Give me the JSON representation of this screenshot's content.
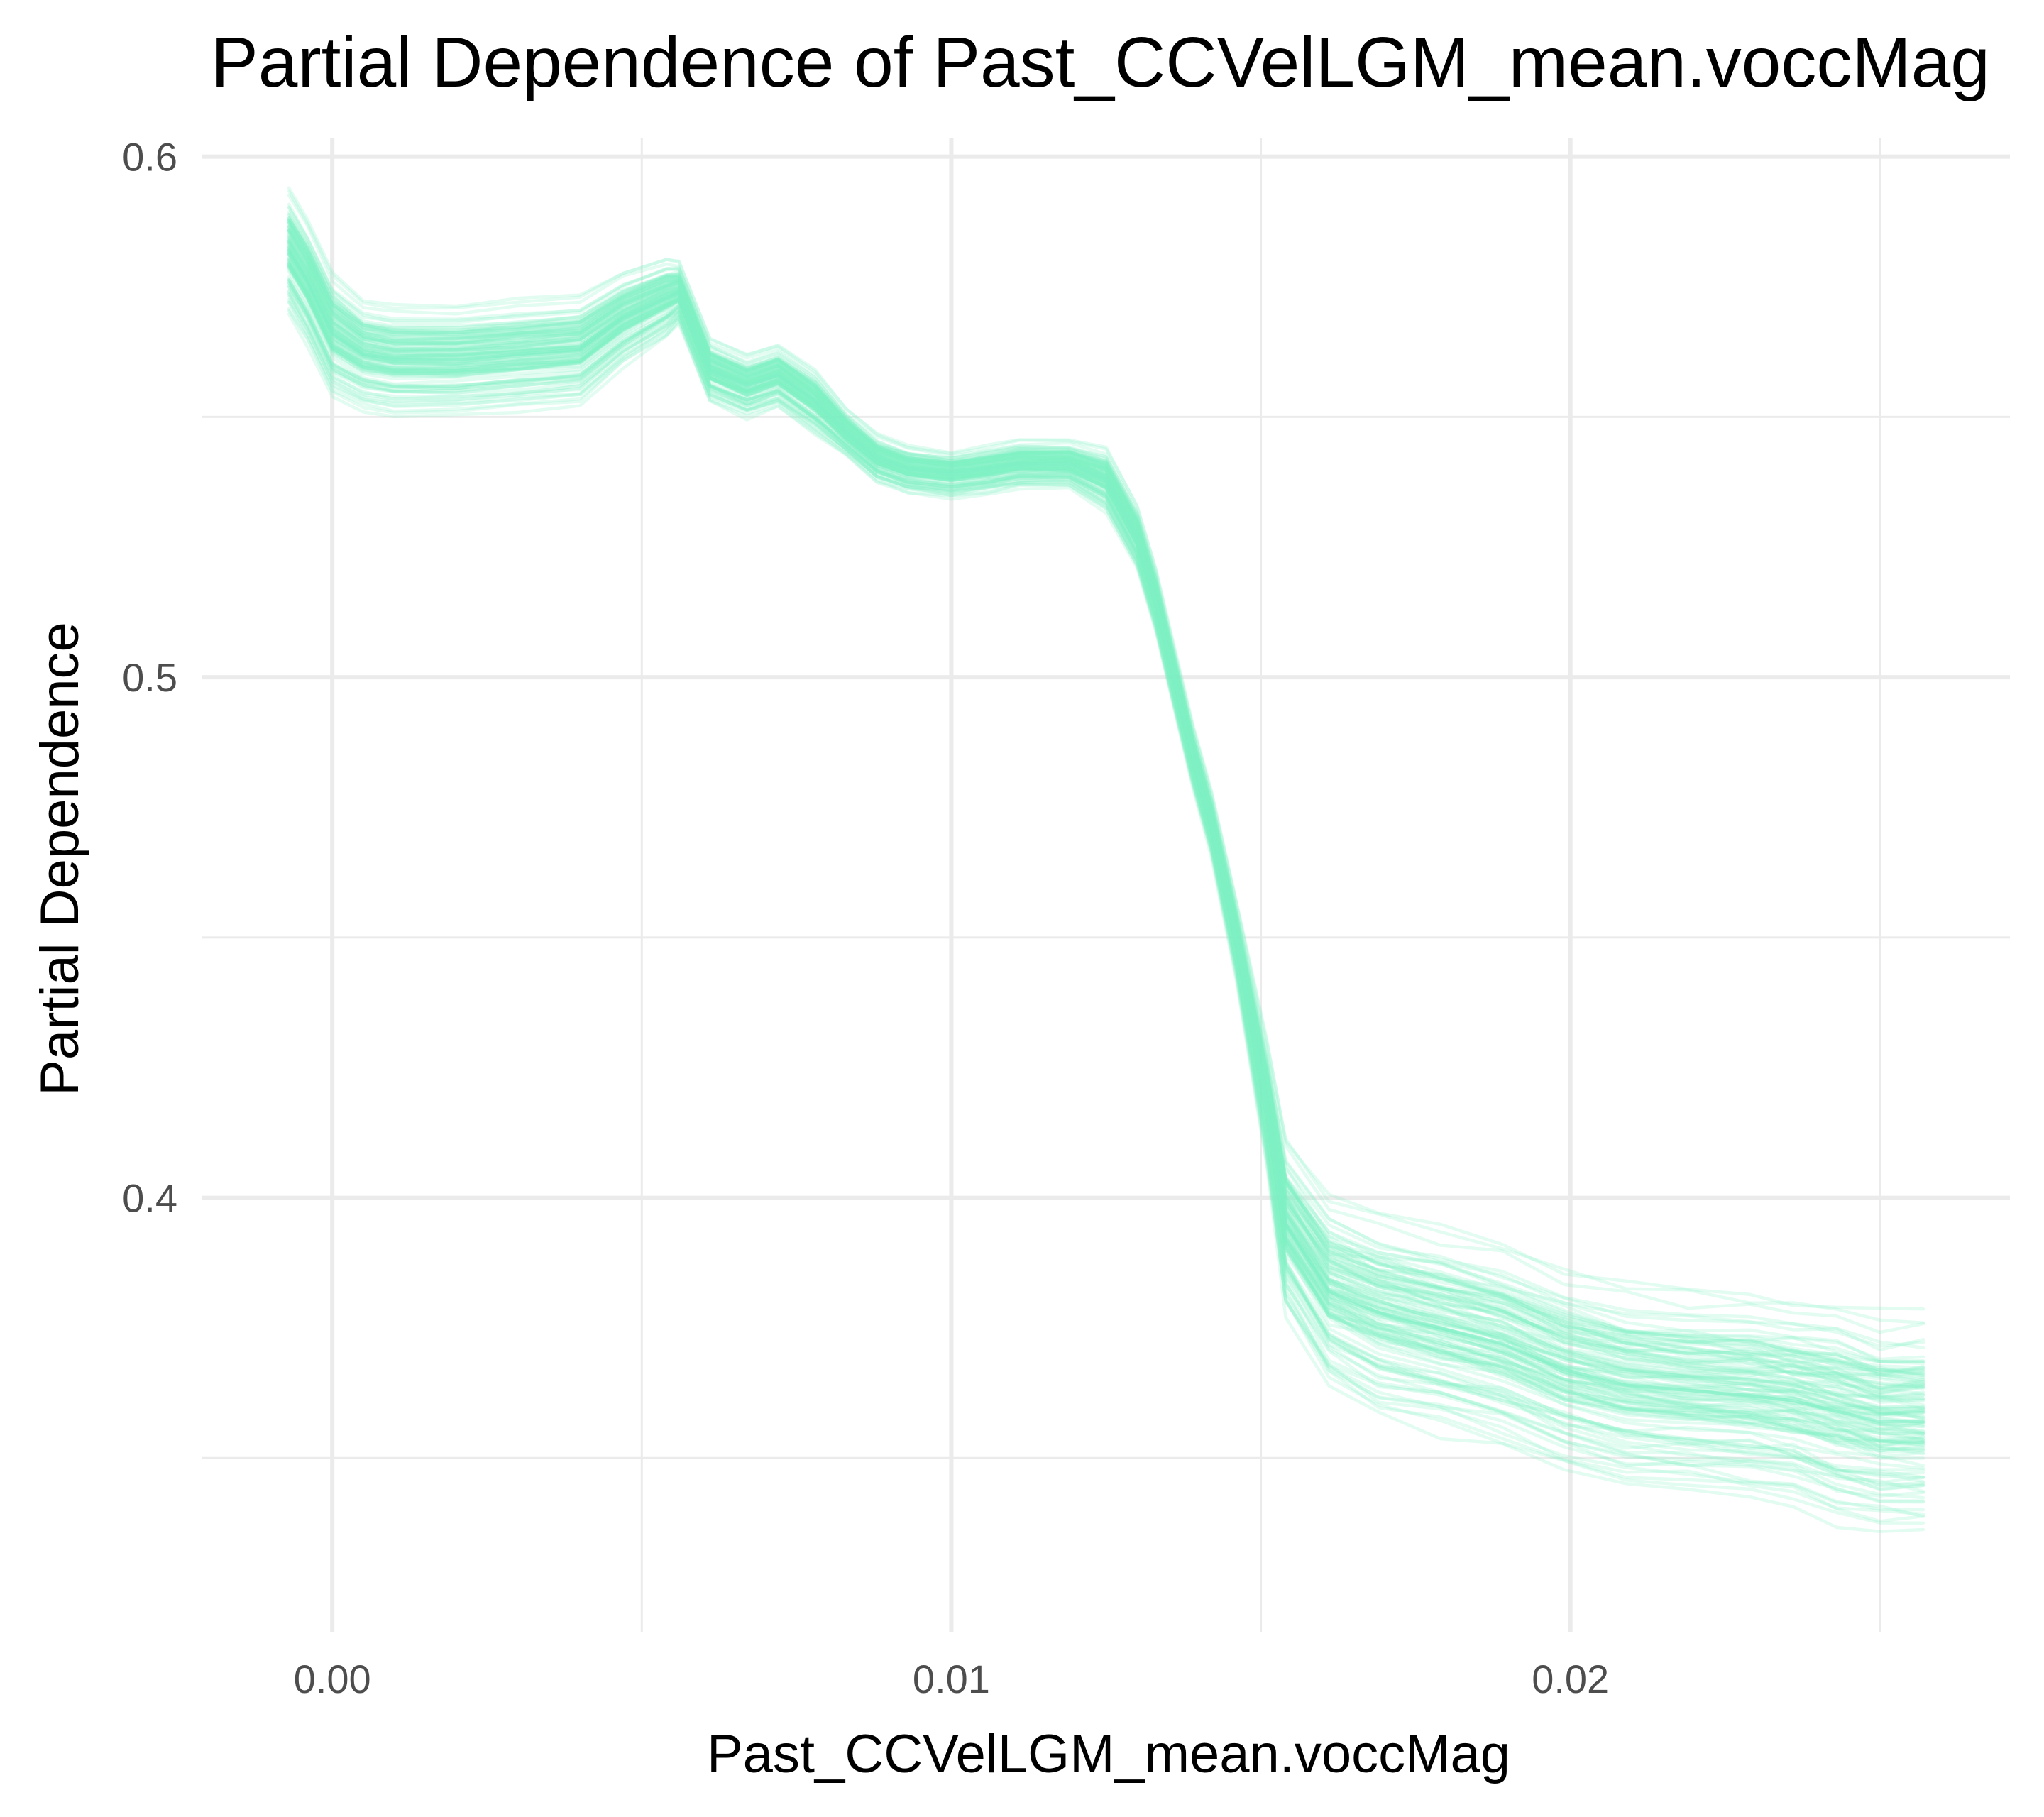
{
  "chart_data": {
    "type": "line",
    "title": "Partial Dependence of Past_CCVelLGM_mean.voccMag",
    "xlabel": "Past_CCVelLGM_mean.voccMag",
    "ylabel": "Partial Dependence",
    "xlim": [
      -0.0021,
      0.0271
    ],
    "ylim": [
      0.3165,
      0.6035
    ],
    "x_ticks": [
      0.0,
      0.01,
      0.02
    ],
    "x_tick_labels": [
      "0.00",
      "0.01",
      "0.02"
    ],
    "x_minor_ticks": [
      0.005,
      0.015,
      0.025
    ],
    "y_ticks": [
      0.4,
      0.5,
      0.6
    ],
    "y_tick_labels": [
      "0.4",
      "0.5",
      "0.6"
    ],
    "y_minor_ticks": [
      0.35,
      0.45,
      0.55
    ],
    "grid": true,
    "legend": "none",
    "line_color": "#7ff0c6",
    "line_opacity": 0.22,
    "n_series": 120,
    "x": [
      -0.0007,
      -0.0004,
      0.0,
      0.0005,
      0.001,
      0.002,
      0.003,
      0.004,
      0.0047,
      0.0054,
      0.0056,
      0.0061,
      0.0067,
      0.0072,
      0.0078,
      0.0083,
      0.0088,
      0.0093,
      0.01,
      0.0106,
      0.0111,
      0.0119,
      0.0125,
      0.013,
      0.0133,
      0.0136,
      0.0139,
      0.0142,
      0.0146,
      0.0151,
      0.0154,
      0.0161,
      0.0169,
      0.0179,
      0.0189,
      0.0199,
      0.0209,
      0.0219,
      0.0229,
      0.0236,
      0.0243,
      0.025,
      0.0257
    ],
    "center_curve": [
      0.582,
      0.576,
      0.566,
      0.562,
      0.561,
      0.561,
      0.562,
      0.563,
      0.569,
      0.573,
      0.574,
      0.559,
      0.556,
      0.558,
      0.553,
      0.547,
      0.542,
      0.54,
      0.539,
      0.54,
      0.541,
      0.541,
      0.538,
      0.527,
      0.515,
      0.5,
      0.485,
      0.472,
      0.45,
      0.418,
      0.395,
      0.382,
      0.378,
      0.375,
      0.372,
      0.367,
      0.364,
      0.363,
      0.362,
      0.361,
      0.359,
      0.357,
      0.357
    ],
    "spread_curve": [
      0.008,
      0.008,
      0.008,
      0.007,
      0.007,
      0.007,
      0.007,
      0.007,
      0.006,
      0.005,
      0.004,
      0.004,
      0.004,
      0.004,
      0.004,
      0.003,
      0.003,
      0.003,
      0.003,
      0.003,
      0.003,
      0.003,
      0.004,
      0.004,
      0.004,
      0.004,
      0.004,
      0.004,
      0.005,
      0.008,
      0.011,
      0.012,
      0.013,
      0.013,
      0.013,
      0.013,
      0.013,
      0.013,
      0.013,
      0.013,
      0.014,
      0.014,
      0.014
    ]
  }
}
